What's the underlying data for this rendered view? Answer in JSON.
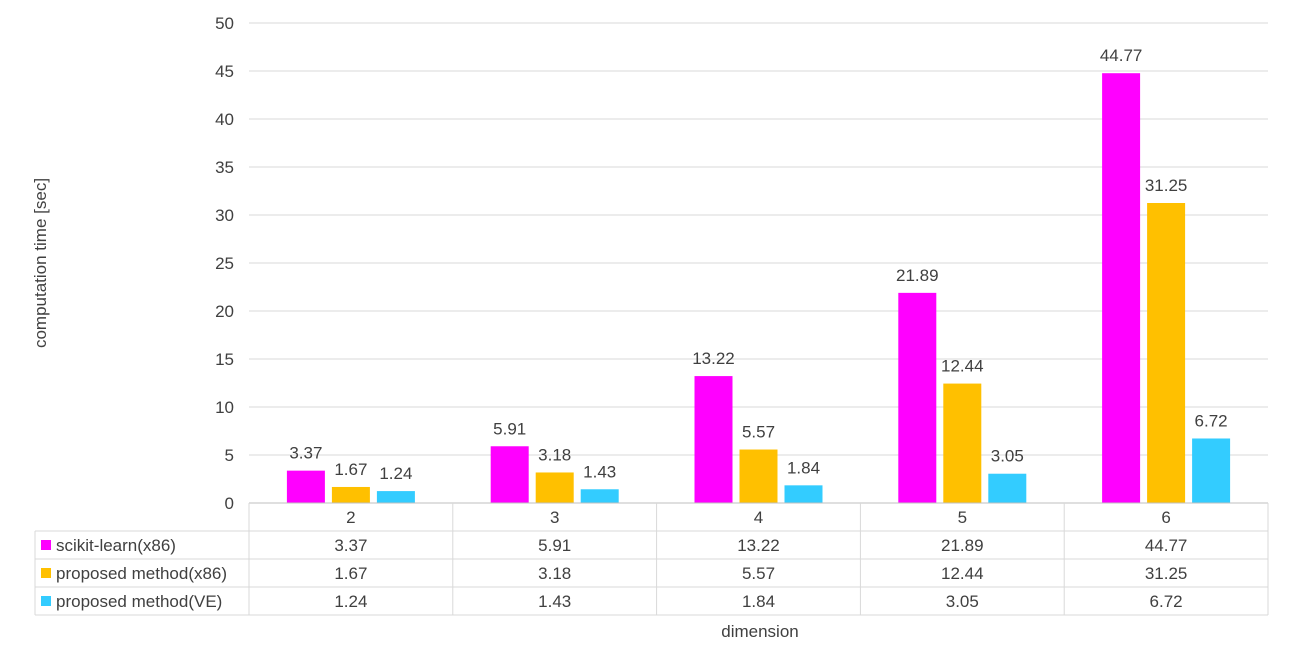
{
  "chart_data": {
    "type": "bar",
    "categories": [
      "2",
      "3",
      "4",
      "5",
      "6"
    ],
    "series": [
      {
        "name": "scikit-learn(x86)",
        "values": [
          3.37,
          5.91,
          13.22,
          21.89,
          44.77
        ],
        "color": "#ff00ff"
      },
      {
        "name": "proposed method(x86)",
        "values": [
          1.67,
          3.18,
          5.57,
          12.44,
          31.25
        ],
        "color": "#ffc000"
      },
      {
        "name": "proposed method(VE)",
        "values": [
          1.24,
          1.43,
          1.84,
          3.05,
          6.72
        ],
        "color": "#33ccff"
      }
    ],
    "title": "",
    "xlabel": "dimension",
    "ylabel": "computation time [sec]",
    "ylim": [
      0,
      50
    ],
    "yticks": [
      0,
      5,
      10,
      15,
      20,
      25,
      30,
      35,
      40,
      45,
      50
    ],
    "grid": true,
    "data_labels": true,
    "legend": "data-table"
  }
}
